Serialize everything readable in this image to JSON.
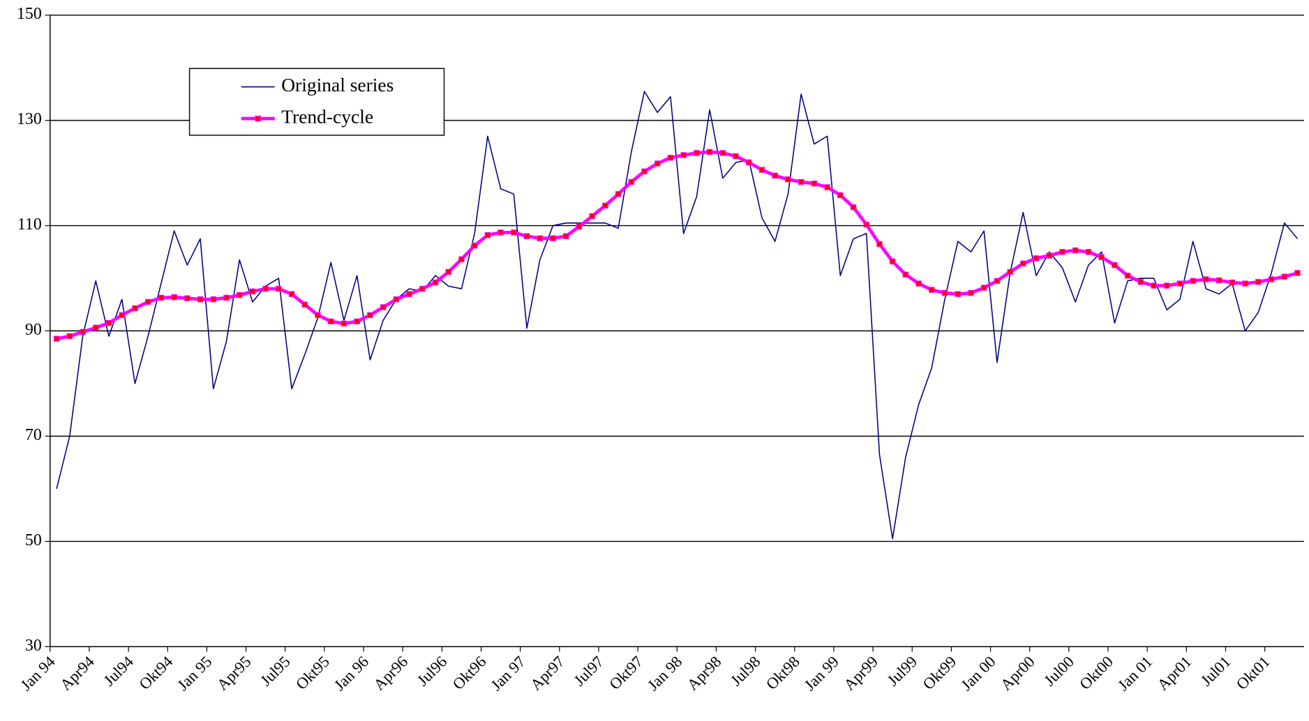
{
  "chart_data": {
    "type": "line",
    "categories": [
      "Jan 94",
      null,
      null,
      "Apr94",
      null,
      null,
      "Jul94",
      null,
      null,
      "Okt94",
      null,
      null,
      "Jan 95",
      null,
      null,
      "Apr95",
      null,
      null,
      "Jul95",
      null,
      null,
      "Okt95",
      null,
      null,
      "Jan 96",
      null,
      null,
      "Apr96",
      null,
      null,
      "Jul96",
      null,
      null,
      "Okt96",
      null,
      null,
      "Jan 97",
      null,
      null,
      "Apr97",
      null,
      null,
      "Jul97",
      null,
      null,
      "Okt97",
      null,
      null,
      "Jan 98",
      null,
      null,
      "Apr98",
      null,
      null,
      "Jul98",
      null,
      null,
      "Okt98",
      null,
      null,
      "Jan 99",
      null,
      null,
      "Apr99",
      null,
      null,
      "Jul99",
      null,
      null,
      "Okt99",
      null,
      null,
      "Jan 00",
      null,
      null,
      "Apr00",
      null,
      null,
      "Jul00",
      null,
      null,
      "Okt00",
      null,
      null,
      "Jan 01",
      null,
      null,
      "Apr01",
      null,
      null,
      "Jul01",
      null,
      null,
      "Okt01",
      null,
      null
    ],
    "series": [
      {
        "name": "Original series",
        "color": "#000080",
        "values": [
          60,
          70,
          89,
          99.5,
          89,
          96,
          80,
          89,
          99,
          109,
          102.5,
          107.5,
          79,
          88,
          103.5,
          95.5,
          98.5,
          100,
          79,
          85.5,
          92.5,
          103,
          92,
          100.5,
          84.5,
          92,
          96,
          98,
          97.5,
          100.5,
          98.5,
          98,
          108.5,
          127,
          117,
          116,
          90.5,
          103.5,
          110,
          110.5,
          110.5,
          110.5,
          110.5,
          109.5,
          124,
          135.5,
          131.5,
          134.5,
          108.5,
          115.5,
          132,
          119,
          122,
          122.5,
          111.5,
          107,
          116,
          135,
          125.5,
          127,
          100.5,
          107.5,
          108.5,
          66.5,
          50.5,
          66,
          76,
          83,
          96,
          107,
          105,
          109,
          84,
          101,
          112.5,
          100.5,
          105,
          102,
          95.5,
          102.5,
          105,
          91.5,
          99.5,
          100,
          100,
          94,
          96,
          107,
          98,
          97,
          99,
          90,
          93.5,
          101,
          110.5,
          107.5
        ]
      },
      {
        "name": "Trend-cycle",
        "color": "#ff00ff",
        "marker": "square",
        "marker_color": "#ff0000",
        "values": [
          88.5,
          89,
          89.8,
          90.6,
          91.5,
          93,
          94.3,
          95.5,
          96.3,
          96.4,
          96.2,
          96,
          96,
          96.3,
          96.8,
          97.5,
          98,
          98,
          97,
          95,
          93,
          91.8,
          91.4,
          91.8,
          93,
          94.5,
          96,
          97,
          98,
          99.2,
          101.2,
          103.6,
          106.2,
          108.2,
          108.7,
          108.7,
          108,
          107.6,
          107.6,
          108,
          109.8,
          111.8,
          113.8,
          116,
          118.3,
          120.3,
          121.8,
          122.9,
          123.4,
          123.8,
          124,
          123.8,
          123.2,
          122,
          120.6,
          119.5,
          118.8,
          118.3,
          118,
          117.3,
          115.8,
          113.5,
          110.2,
          106.5,
          103.2,
          100.7,
          99,
          97.8,
          97.2,
          97,
          97.2,
          98.2,
          99.5,
          101.2,
          102.8,
          103.8,
          104.3,
          105,
          105.3,
          105,
          104,
          102.5,
          100.5,
          99.3,
          98.6,
          98.6,
          99,
          99.5,
          99.8,
          99.6,
          99.2,
          99,
          99.3,
          99.8,
          100.3,
          101
        ]
      }
    ],
    "ylim": [
      30,
      150
    ],
    "yticks": [
      30,
      50,
      70,
      90,
      110,
      130,
      150
    ],
    "grid": true,
    "legend": "upper left"
  }
}
